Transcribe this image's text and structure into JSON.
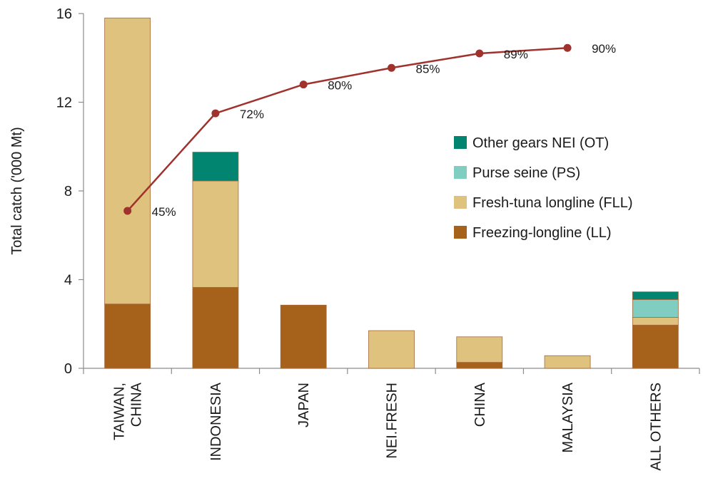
{
  "chart_data": {
    "type": "bar",
    "stacked": true,
    "ylabel": "Total catch ('000 Mt)",
    "xlabel": "",
    "ylim": [
      0,
      16
    ],
    "yticks": [
      0,
      4,
      8,
      12,
      16
    ],
    "categories": [
      [
        "TAIWAN,",
        "CHINA"
      ],
      [
        "INDONESIA"
      ],
      [
        "JAPAN"
      ],
      [
        "NEI.FRESH"
      ],
      [
        "CHINA"
      ],
      [
        "MALAYSIA"
      ],
      [
        "ALL OTHERS"
      ]
    ],
    "series": [
      {
        "name": "Freezing-longline (LL)",
        "color": "#a6611a",
        "values": [
          2.9,
          3.65,
          2.85,
          0,
          0.27,
          0,
          1.95
        ]
      },
      {
        "name": "Fresh-tuna longline (FLL)",
        "color": "#dfc27d",
        "values": [
          12.9,
          4.8,
          0,
          1.7,
          1.15,
          0.57,
          0.35
        ]
      },
      {
        "name": "Purse seine (PS)",
        "color": "#80cdc1",
        "values": [
          0,
          0,
          0,
          0,
          0,
          0,
          0.8
        ]
      },
      {
        "name": "Other gears NEI (OT)",
        "color": "#018571",
        "values": [
          0,
          1.3,
          0,
          0,
          0,
          0,
          0.35
        ]
      }
    ],
    "line": {
      "color": "#a0322e",
      "points": [
        7.1,
        11.5,
        12.8,
        13.55,
        14.2,
        14.45
      ],
      "labels": [
        "45%",
        "72%",
        "80%",
        "85%",
        "89%",
        "90%"
      ]
    },
    "legend": {
      "position": "right",
      "order": [
        "Other gears NEI (OT)",
        "Purse seine (PS)",
        "Fresh-tuna longline (FLL)",
        "Freezing-longline (LL)"
      ]
    },
    "grid": false
  }
}
